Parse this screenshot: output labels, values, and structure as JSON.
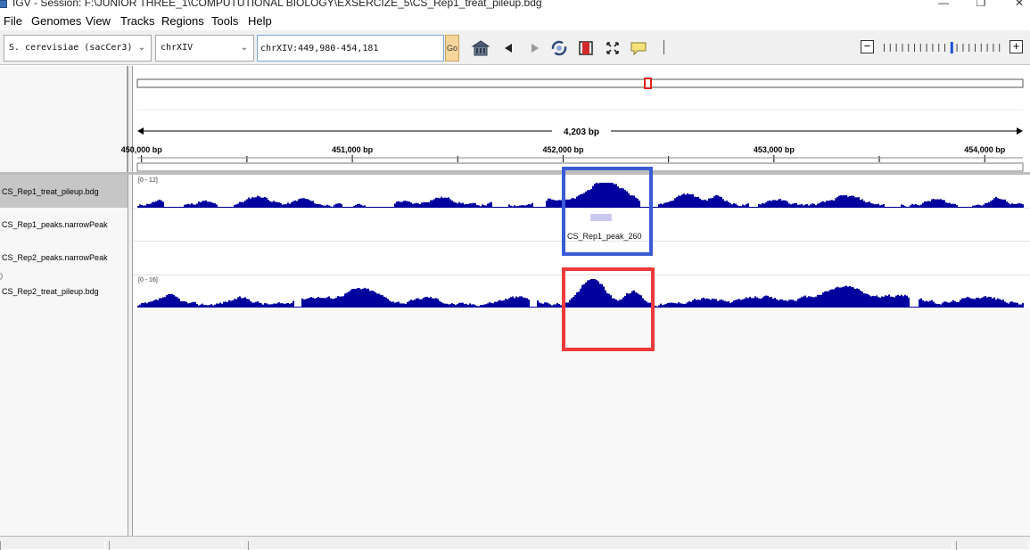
{
  "window": {
    "title": "IGV - Session: F:\\JUNIOR THREE_1\\COMPUTUTIONAL BIOLOGY\\EXSERCIZE_5\\CS_Rep1_treat_pileup.bdg",
    "controls": {
      "minimize": "—",
      "restore": "❐",
      "close": "✕"
    }
  },
  "menu": {
    "items": [
      {
        "label": "File"
      },
      {
        "label": "Genomes"
      },
      {
        "label": "View"
      },
      {
        "label": "Tracks"
      },
      {
        "label": "Regions"
      },
      {
        "label": "Tools"
      },
      {
        "label": "Help"
      }
    ]
  },
  "toolbar": {
    "genome": "S. cerevisiae (sacCer3)",
    "chromosome": "chrXIV",
    "locus": "chrXIV:449,980-454,181",
    "go_label": "Go",
    "icons": [
      "home-icon",
      "back-arrow-icon",
      "forward-arrow-icon",
      "refresh-icon",
      "region-of-interest-icon",
      "fit-to-window-icon",
      "popup-info-icon"
    ],
    "zoom": {
      "minus": "−",
      "plus": "+",
      "levels": 20,
      "current": 11
    }
  },
  "ruler": {
    "span_label": "4,203 bp",
    "view_start": 449980,
    "view_end": 454181,
    "ticks": [
      {
        "pos": 450000,
        "label": "450,000 bp"
      },
      {
        "pos": 451000,
        "label": "451,000 bp"
      },
      {
        "pos": 452000,
        "label": "452,000 bp"
      },
      {
        "pos": 453000,
        "label": "453,000 bp"
      },
      {
        "pos": 454000,
        "label": "454,000 bp"
      }
    ]
  },
  "tracks": [
    {
      "id": "rep1_pileup",
      "name": "CS_Rep1_treat_pileup.bdg",
      "type": "bar",
      "range": "[0 - 12]",
      "selected": true,
      "color": "#00009f"
    },
    {
      "id": "rep1_peaks",
      "name": "CS_Rep1_peaks.narrowPeak",
      "type": "feature",
      "feature_label": "CS_Rep1_peak_260",
      "feature_start": 452130,
      "feature_end": 452230,
      "color": "#c8c8f0"
    },
    {
      "id": "rep2_peaks",
      "name": "CS_Rep2_peaks.narrowPeak",
      "type": "feature"
    },
    {
      "id": "rep2_pileup",
      "name": "CS_Rep2_treat_pileup.bdg",
      "type": "bar",
      "range": "[0 - 16]",
      "color": "#00009f"
    }
  ],
  "annotations": [
    {
      "name": "blue-highlight-box",
      "color": "#3a5bd6"
    },
    {
      "name": "red-highlight-box",
      "color": "#ee3a3a"
    }
  ]
}
